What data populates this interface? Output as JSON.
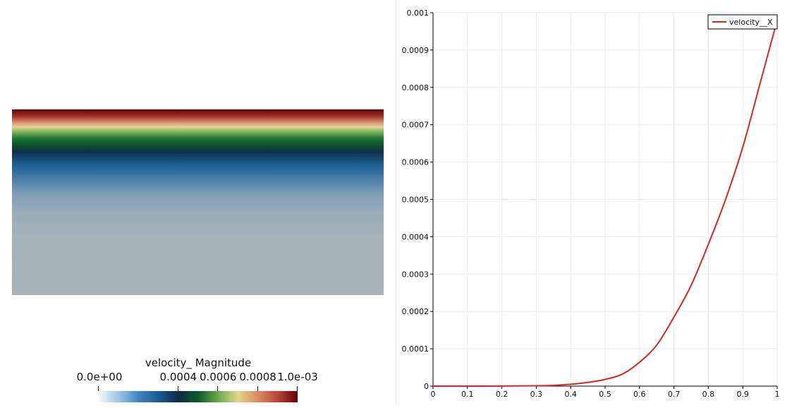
{
  "colorbar": {
    "title": "velocity_ Magnitude",
    "labels": [
      {
        "text": "0.0e+00",
        "value": 0
      },
      {
        "text": "0.0004",
        "value": 0.0004
      },
      {
        "text": "0.0006",
        "value": 0.0006
      },
      {
        "text": "0.0008",
        "value": 0.0008
      },
      {
        "text": "1.0e-03",
        "value": 0.001
      }
    ],
    "range": [
      0,
      0.001
    ]
  },
  "colors": {
    "line": "#d62728",
    "grid": "#ebebeb",
    "colormap": [
      "#f4f9fd",
      "#9dc6e8",
      "#3f85c2",
      "#1a5a94",
      "#0c2a48",
      "#0d5a27",
      "#6aa850",
      "#e6d38c",
      "#d98c62",
      "#b8433a",
      "#650000"
    ],
    "field_rest": "#a5b2b8"
  },
  "chart_data": {
    "type": "line",
    "title": "",
    "xlabel": "",
    "ylabel": "",
    "xlim": [
      0,
      1
    ],
    "ylim": [
      0,
      0.001
    ],
    "grid": true,
    "legend_position": "top-right",
    "x_ticks": [
      "0",
      "0.1",
      "0.2",
      "0.3",
      "0.4",
      "0.5",
      "0.6",
      "0.7",
      "0.8",
      "0.9",
      "1"
    ],
    "y_ticks": [
      "0",
      "0.0001",
      "0.0002",
      "0.0003",
      "0.0004",
      "0.0005",
      "0.0006",
      "0.0007",
      "0.0008",
      "0.0009",
      "0.001"
    ],
    "series": [
      {
        "name": "velocity__X",
        "x": [
          0,
          0.1,
          0.2,
          0.3,
          0.35,
          0.4,
          0.45,
          0.5,
          0.55,
          0.6,
          0.65,
          0.7,
          0.75,
          0.8,
          0.85,
          0.9,
          0.95,
          1.0
        ],
        "y": [
          0,
          0,
          2e-07,
          1e-06,
          2e-06,
          5e-06,
          1e-05,
          1.8e-05,
          3.2e-05,
          6.4e-05,
          0.00011,
          0.000185,
          0.00027,
          0.00038,
          0.0005,
          0.00064,
          0.00081,
          0.00098
        ]
      }
    ]
  }
}
